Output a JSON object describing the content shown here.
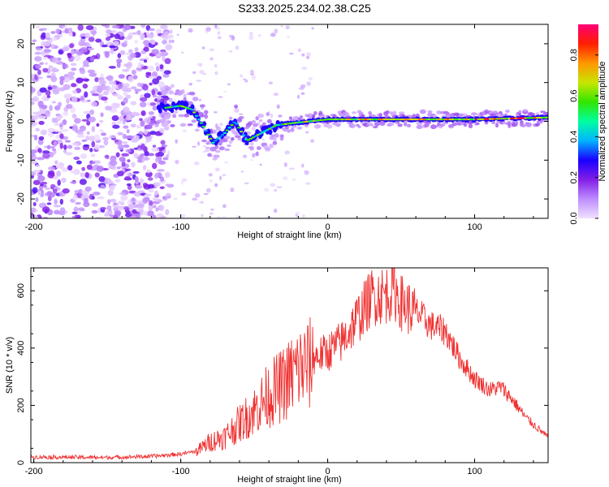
{
  "title": "S233.2025.234.02.38.C25",
  "chart_data": [
    {
      "type": "heatmap",
      "name": "spectrogram",
      "xlabel": "Height of straight line (km)",
      "ylabel": "Frequency (Hz)",
      "xlim": [
        -202,
        150
      ],
      "ylim": [
        -25,
        25
      ],
      "xticks": [
        -200,
        -100,
        0,
        100
      ],
      "yticks": [
        -20,
        -10,
        0,
        10,
        20
      ],
      "ridge": [
        {
          "x": -110,
          "y": 3.5
        },
        {
          "x": -100,
          "y": 4
        },
        {
          "x": -92,
          "y": 3
        },
        {
          "x": -85,
          "y": -1
        },
        {
          "x": -78,
          "y": -5.5
        },
        {
          "x": -70,
          "y": -3
        },
        {
          "x": -63,
          "y": 0
        },
        {
          "x": -55,
          "y": -5
        },
        {
          "x": -45,
          "y": -3
        },
        {
          "x": -35,
          "y": -1
        },
        {
          "x": -25,
          "y": -0.5
        },
        {
          "x": 0,
          "y": 0.5
        },
        {
          "x": 50,
          "y": 0.5
        },
        {
          "x": 100,
          "y": 0.5
        },
        {
          "x": 150,
          "y": 1
        }
      ],
      "colorbar": {
        "label": "Normalized spectral amplitude",
        "range": [
          0.0,
          0.95
        ],
        "ticks": [
          0.0,
          0.2,
          0.4,
          0.6,
          0.8
        ],
        "tick_labels": [
          "0.0",
          "0.2",
          "0.4",
          "0.6",
          "0.8"
        ]
      }
    },
    {
      "type": "line",
      "name": "snr",
      "xlabel": "Height of straight line (km)",
      "ylabel": "SNR (10 * v/v)",
      "xlim": [
        -202,
        150
      ],
      "ylim": [
        0,
        680
      ],
      "xticks": [
        -200,
        -100,
        0,
        100
      ],
      "yticks": [
        0,
        200,
        400,
        600
      ],
      "color": "#f03030",
      "envelope": [
        {
          "x": -202,
          "y": 20
        },
        {
          "x": -150,
          "y": 18
        },
        {
          "x": -120,
          "y": 22
        },
        {
          "x": -100,
          "y": 30
        },
        {
          "x": -90,
          "y": 40
        },
        {
          "x": -80,
          "y": 80
        },
        {
          "x": -70,
          "y": 100
        },
        {
          "x": -60,
          "y": 150
        },
        {
          "x": -50,
          "y": 200
        },
        {
          "x": -40,
          "y": 260
        },
        {
          "x": -30,
          "y": 300
        },
        {
          "x": -20,
          "y": 360
        },
        {
          "x": -10,
          "y": 380
        },
        {
          "x": 0,
          "y": 400
        },
        {
          "x": 10,
          "y": 440
        },
        {
          "x": 20,
          "y": 520
        },
        {
          "x": 30,
          "y": 600
        },
        {
          "x": 40,
          "y": 610
        },
        {
          "x": 45,
          "y": 630
        },
        {
          "x": 50,
          "y": 580
        },
        {
          "x": 60,
          "y": 540
        },
        {
          "x": 70,
          "y": 490
        },
        {
          "x": 80,
          "y": 470
        },
        {
          "x": 85,
          "y": 420
        },
        {
          "x": 90,
          "y": 370
        },
        {
          "x": 100,
          "y": 300
        },
        {
          "x": 110,
          "y": 260
        },
        {
          "x": 118,
          "y": 270
        },
        {
          "x": 125,
          "y": 230
        },
        {
          "x": 135,
          "y": 160
        },
        {
          "x": 150,
          "y": 90
        }
      ]
    }
  ]
}
